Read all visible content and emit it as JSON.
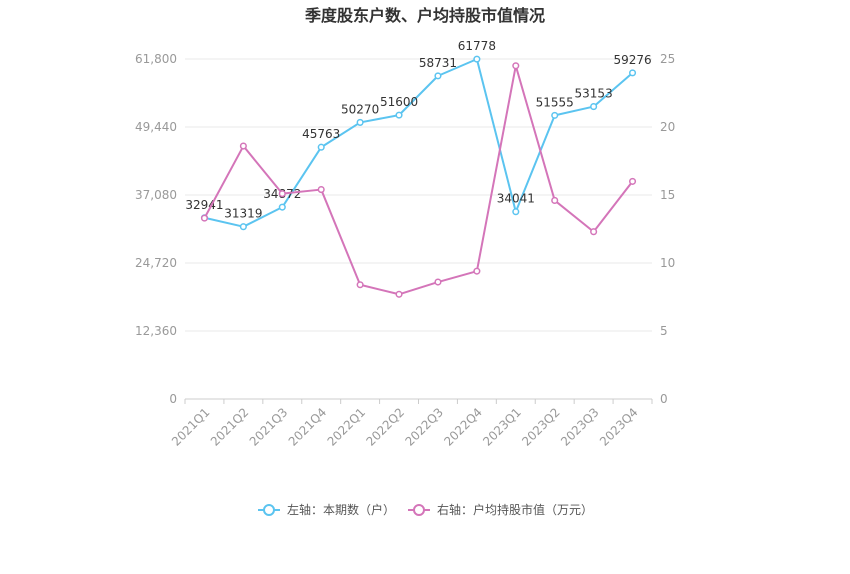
{
  "title": "季度股东户数、户均持股市值情况",
  "chart_data": {
    "type": "line",
    "categories": [
      "2021Q1",
      "2021Q2",
      "2021Q3",
      "2021Q4",
      "2022Q1",
      "2022Q2",
      "2022Q3",
      "2022Q4",
      "2023Q1",
      "2023Q2",
      "2023Q3",
      "2023Q4"
    ],
    "left_axis": {
      "ticks": [
        "0",
        "12,360",
        "24,720",
        "37,080",
        "49,440",
        "61,800"
      ],
      "ylim": [
        0,
        61800
      ]
    },
    "right_axis": {
      "ticks": [
        "0",
        "5",
        "10",
        "15",
        "20",
        "25"
      ],
      "ylim": [
        0,
        25
      ]
    },
    "grid": true,
    "legend_position": "bottom",
    "series": [
      {
        "name": "左轴：本期数（户）",
        "axis": "left",
        "color": "#5bc4f0",
        "values": [
          32941,
          31319,
          34872,
          45763,
          50270,
          51600,
          58731,
          61778,
          34041,
          51555,
          53153,
          59276
        ],
        "labels": [
          "32941",
          "31319",
          "34872",
          "45763",
          "50270",
          "51600",
          "58731",
          "61778",
          "34041",
          "51555",
          "53153",
          "59276"
        ]
      },
      {
        "name": "右轴：户均持股市值（万元）",
        "axis": "right",
        "color": "#d475b9",
        "values": [
          13.3,
          18.6,
          15.1,
          15.4,
          8.4,
          7.7,
          8.6,
          9.4,
          24.5,
          14.6,
          12.3,
          16.0
        ]
      }
    ]
  }
}
